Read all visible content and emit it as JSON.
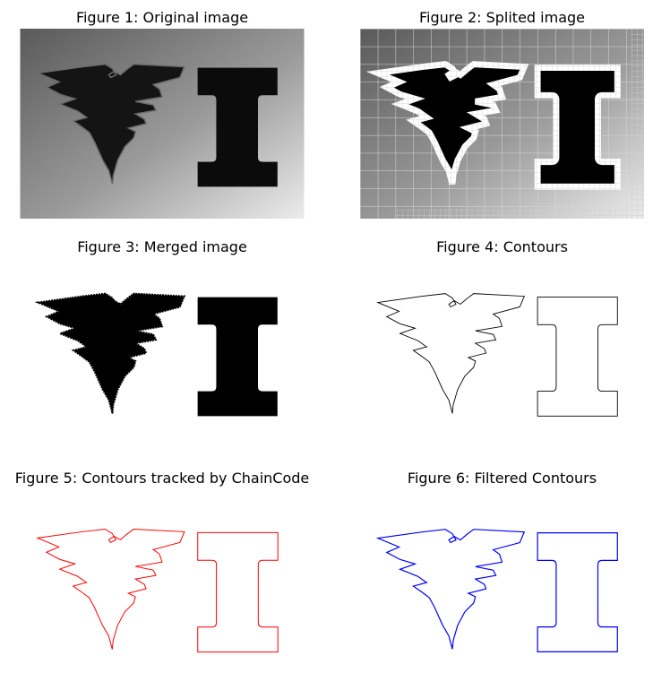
{
  "figures": [
    {
      "title": "Figure 1: Original image",
      "style": "gradient-photo"
    },
    {
      "title": "Figure 2: Splited image",
      "style": "quadtree-split"
    },
    {
      "title": "Figure 3: Merged image",
      "style": "filled-black"
    },
    {
      "title": "Figure 4: Contours",
      "style": "outline",
      "color": "#000000"
    },
    {
      "title": "Figure 5: Contours tracked by ChainCode",
      "style": "outline",
      "color": "#ff0000"
    },
    {
      "title": "Figure 6: Filtered Contours",
      "style": "outline",
      "color": "#0000ff"
    }
  ]
}
